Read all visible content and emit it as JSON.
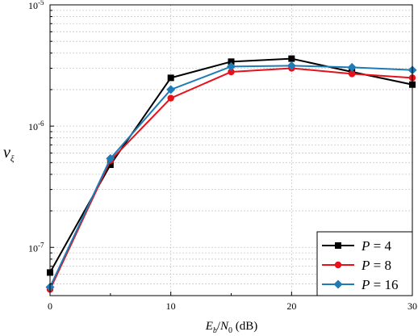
{
  "chart_data": {
    "type": "line",
    "yscale": "log",
    "x": [
      0,
      5,
      10,
      15,
      20,
      25,
      30
    ],
    "xlim": [
      0,
      30
    ],
    "ylim": [
      4e-08,
      1e-05
    ],
    "xticks": [
      "0",
      "10",
      "20",
      "30"
    ],
    "yticks": [
      {
        "base": "10",
        "exp": "-7"
      },
      {
        "base": "10",
        "exp": "-6"
      },
      {
        "base": "10",
        "exp": "-5"
      }
    ],
    "xlabel": {
      "e": "E",
      "e_sub": "b",
      "n": "N",
      "n_sub": "0",
      "unit": "(dB)"
    },
    "ylabel": {
      "main": "v",
      "sub": "ξ"
    },
    "series": [
      {
        "name": "P = 4",
        "legend_var": "P",
        "legend_value": "= 4",
        "color": "#000000",
        "marker": "square",
        "values": [
          6.2e-08,
          4.8e-07,
          2.5e-06,
          3.4e-06,
          3.6e-06,
          2.8e-06,
          2.2e-06
        ]
      },
      {
        "name": "P = 8",
        "legend_var": "P",
        "legend_value": "= 8",
        "color": "#e8101a",
        "marker": "circle",
        "values": [
          4.5e-08,
          5.2e-07,
          1.7e-06,
          2.8e-06,
          3e-06,
          2.7e-06,
          2.5e-06
        ]
      },
      {
        "name": "P = 16",
        "legend_var": "P",
        "legend_value": "= 16",
        "color": "#1f7bb6",
        "marker": "diamond",
        "values": [
          4.7e-08,
          5.4e-07,
          2e-06,
          3.1e-06,
          3.15e-06,
          3.05e-06,
          2.9e-06
        ]
      }
    ],
    "grid": true,
    "legend_position": "bottom-right"
  }
}
